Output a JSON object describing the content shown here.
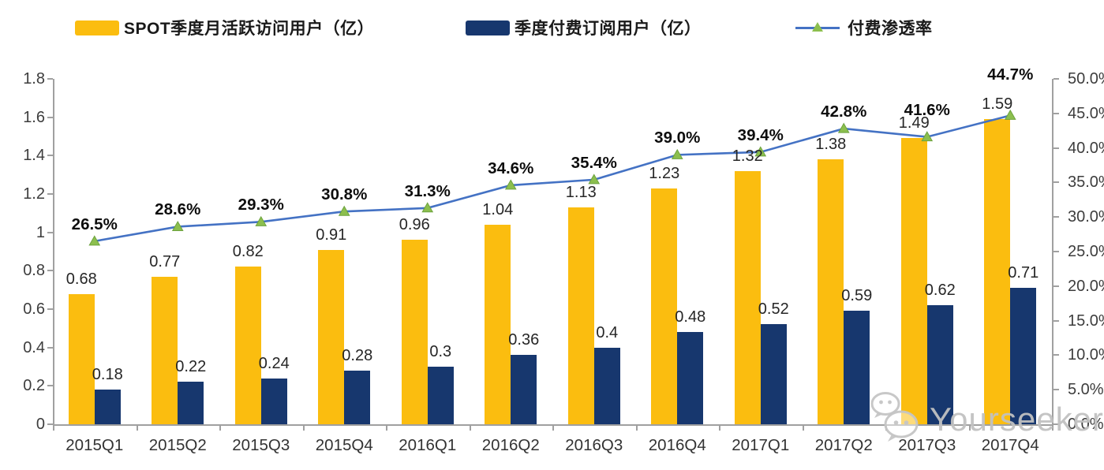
{
  "legend": [
    {
      "label": "SPOT季度月活跃访问用户（亿）",
      "color": "#FBBD0F",
      "type": "bar"
    },
    {
      "label": "季度付费订阅用户（亿）",
      "color": "#17376E",
      "type": "bar"
    },
    {
      "label": "付费渗透率",
      "color": "#4472C4",
      "marker_color": "#8CBF4E",
      "marker_edge": "#6DA33F",
      "type": "line"
    }
  ],
  "chart_data": {
    "type": "bar",
    "subtype": "grouped-bars-with-line",
    "categories": [
      "2015Q1",
      "2015Q2",
      "2015Q3",
      "2015Q4",
      "2016Q1",
      "2016Q2",
      "2016Q3",
      "2016Q4",
      "2017Q1",
      "2017Q2",
      "2017Q3",
      "2017Q4"
    ],
    "series": [
      {
        "name": "SPOT季度月活跃访问用户（亿）",
        "type": "bar",
        "axis": "left",
        "color": "#FBBD0F",
        "values": [
          0.68,
          0.77,
          0.82,
          0.91,
          0.96,
          1.04,
          1.13,
          1.23,
          1.32,
          1.38,
          1.49,
          1.59
        ],
        "labels": [
          "0.68",
          "0.77",
          "0.82",
          "0.91",
          "0.96",
          "1.04",
          "1.13",
          "1.23",
          "1.32",
          "1.38",
          "1.49",
          "1.59"
        ]
      },
      {
        "name": "季度付费订阅用户（亿）",
        "type": "bar",
        "axis": "left",
        "color": "#17376E",
        "values": [
          0.18,
          0.22,
          0.24,
          0.28,
          0.3,
          0.36,
          0.4,
          0.48,
          0.52,
          0.59,
          0.62,
          0.71
        ],
        "labels": [
          "0.18",
          "0.22",
          "0.24",
          "0.28",
          "0.3",
          "0.36",
          "0.4",
          "0.48",
          "0.52",
          "0.59",
          "0.62",
          "0.71"
        ]
      },
      {
        "name": "付费渗透率",
        "type": "line",
        "axis": "right",
        "color": "#4472C4",
        "marker": "triangle",
        "marker_color": "#8CBF4E",
        "marker_edge": "#6DA33F",
        "values": [
          26.5,
          28.6,
          29.3,
          30.8,
          31.3,
          34.6,
          35.4,
          39.0,
          39.4,
          42.8,
          41.6,
          44.7
        ],
        "labels": [
          "26.5%",
          "28.6%",
          "29.3%",
          "30.8%",
          "31.3%",
          "34.6%",
          "35.4%",
          "39.0%",
          "39.4%",
          "42.8%",
          "41.6%",
          "44.7%"
        ]
      }
    ],
    "left_axis": {
      "min": 0,
      "max": 1.8,
      "step": 0.2,
      "ticks": [
        "0",
        "0.2",
        "0.4",
        "0.6",
        "0.8",
        "1",
        "1.2",
        "1.4",
        "1.6",
        "1.8"
      ]
    },
    "right_axis": {
      "min": 0,
      "max": 50,
      "step": 5,
      "ticks": [
        "0.0%",
        "5.0%",
        "10.0%",
        "15.0%",
        "20.0%",
        "25.0%",
        "30.0%",
        "35.0%",
        "40.0%",
        "45.0%",
        "50.0%"
      ]
    },
    "title": "",
    "xlabel": "",
    "ylabel": "",
    "grid": false,
    "legend_position": "top"
  },
  "watermark": {
    "text": "Yourseeker",
    "icon": "wechat-icon",
    "color": "#C1C1C1"
  }
}
